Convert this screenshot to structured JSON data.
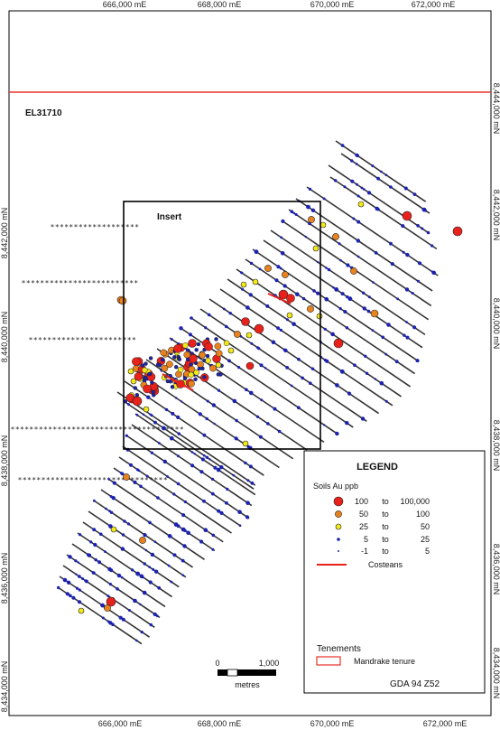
{
  "map": {
    "tenement_label": "EL31710",
    "insert_label": "Insert",
    "datum": "GDA 94 Z52",
    "x_ticks": [
      "666,000 mE",
      "668,000 mE",
      "670,000 mE",
      "672,000 mE"
    ],
    "y_ticks_left": [
      "8,442,000 mN",
      "8,440,000 mN",
      "8,438,000 mN",
      "8,436,000 mN",
      "8,434,000 mN"
    ],
    "y_ticks_right": [
      "8,444,000 mN",
      "8,442,000 mN",
      "8,440,000 mN",
      "8,438,000 mN",
      "8,436,000 mN",
      "8,434,000 mN"
    ],
    "scale_bar": {
      "start": "0",
      "end": "1,000",
      "unit": "metres"
    },
    "boundary_color": "#e8332a"
  },
  "legend": {
    "title": "LEGEND",
    "soils_heading": "Soils Au ppb",
    "classes": [
      {
        "from": "100",
        "to_word": "to",
        "upper": "100,000",
        "color": "#e8211b",
        "symbol": "large-red-dot"
      },
      {
        "from": "50",
        "to_word": "to",
        "upper": "100",
        "color": "#e8821e",
        "symbol": "orange-dot"
      },
      {
        "from": "25",
        "to_word": "to",
        "upper": "50",
        "color": "#f2e918",
        "symbol": "yellow-dot"
      },
      {
        "from": "5",
        "to_word": "to",
        "upper": "25",
        "color": "#1c22b0",
        "symbol": "blue-dot"
      },
      {
        "from": "-1",
        "to_word": "to",
        "upper": "5",
        "color": "#1c22b0",
        "symbol": "tiny-dot"
      }
    ],
    "costeans_label": "Costeans",
    "tenements_heading": "Tenements",
    "tenure_label": "Mandrake tenure"
  }
}
